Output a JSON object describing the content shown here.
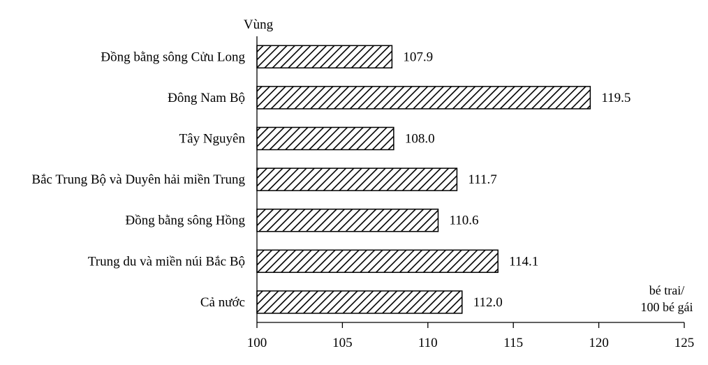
{
  "chart_data": {
    "type": "bar",
    "orientation": "horizontal",
    "y_axis_title": "Vùng",
    "x_axis_unit": [
      "bé trai/",
      "100 bé gái"
    ],
    "categories": [
      "Đồng bằng sông Cửu Long",
      "Đông Nam Bộ",
      "Tây Nguyên",
      "Bắc Trung Bộ và Duyên hải miền Trung",
      "Đồng bằng sông Hồng",
      "Trung du và miền núi Bắc Bộ",
      "Cả nước"
    ],
    "values": [
      107.9,
      119.5,
      108.0,
      111.7,
      110.6,
      114.1,
      112.0
    ],
    "value_labels": [
      "107.9",
      "119.5",
      "108.0",
      "111.7",
      "110.6",
      "114.1",
      "112.0"
    ],
    "xlim": [
      100,
      125
    ],
    "xticks": [
      100,
      105,
      110,
      115,
      120,
      125
    ],
    "xtick_labels": [
      "100",
      "105",
      "110",
      "115",
      "120",
      "125"
    ],
    "fill_pattern": "diagonal-hatch",
    "colors": {
      "bar_stroke": "#000000",
      "hatch": "#000000",
      "background": "#ffffff"
    }
  }
}
